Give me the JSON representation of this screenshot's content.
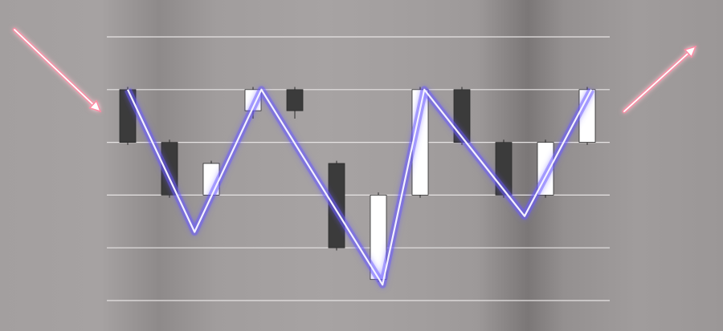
{
  "chart_data": {
    "type": "candlestick",
    "title": "",
    "xlabel": "",
    "ylabel": "",
    "grid": true,
    "grid_levels": [
      0,
      1,
      2,
      3,
      4,
      5
    ],
    "ylim": [
      0,
      5
    ],
    "candles": [
      {
        "open": 4,
        "close": 3,
        "high": 4.05,
        "low": 2.95
      },
      {
        "open": 3,
        "close": 2,
        "high": 3.05,
        "low": 1.95
      },
      {
        "open": 2,
        "close": 2.6,
        "high": 2.65,
        "low": 1.95
      },
      {
        "open": 3.6,
        "close": 4,
        "high": 4.05,
        "low": 3.45
      },
      {
        "open": 4,
        "close": 3.6,
        "high": 4.05,
        "low": 3.45
      },
      {
        "open": 2.6,
        "close": 1,
        "high": 2.65,
        "low": 0.95
      },
      {
        "open": 0.4,
        "close": 2,
        "high": 2.05,
        "low": 0.35
      },
      {
        "open": 2,
        "close": 4,
        "high": 4.05,
        "low": 1.95
      },
      {
        "open": 4,
        "close": 3,
        "high": 4.05,
        "low": 2.95
      },
      {
        "open": 3,
        "close": 2,
        "high": 3.05,
        "low": 1.95
      },
      {
        "open": 2,
        "close": 3,
        "high": 3.05,
        "low": 1.95
      },
      {
        "open": 3,
        "close": 4,
        "high": 4.05,
        "low": 2.95
      }
    ],
    "pattern_line": [
      {
        "x": 0,
        "y": 4
      },
      {
        "x": 1.6,
        "y": 1.3
      },
      {
        "x": 3.2,
        "y": 4
      },
      {
        "x": 6.1,
        "y": 0.3
      },
      {
        "x": 7.1,
        "y": 4
      },
      {
        "x": 9.5,
        "y": 1.6
      },
      {
        "x": 11.1,
        "y": 4
      }
    ],
    "trend_arrows": {
      "entry": "down",
      "exit": "up"
    },
    "colors": {
      "bearish": "#3b3b3b",
      "bullish": "#ffffff",
      "pattern_line": "#6a5cff",
      "arrows": "#ff8aa4",
      "grid": "#e6e3e3"
    }
  }
}
